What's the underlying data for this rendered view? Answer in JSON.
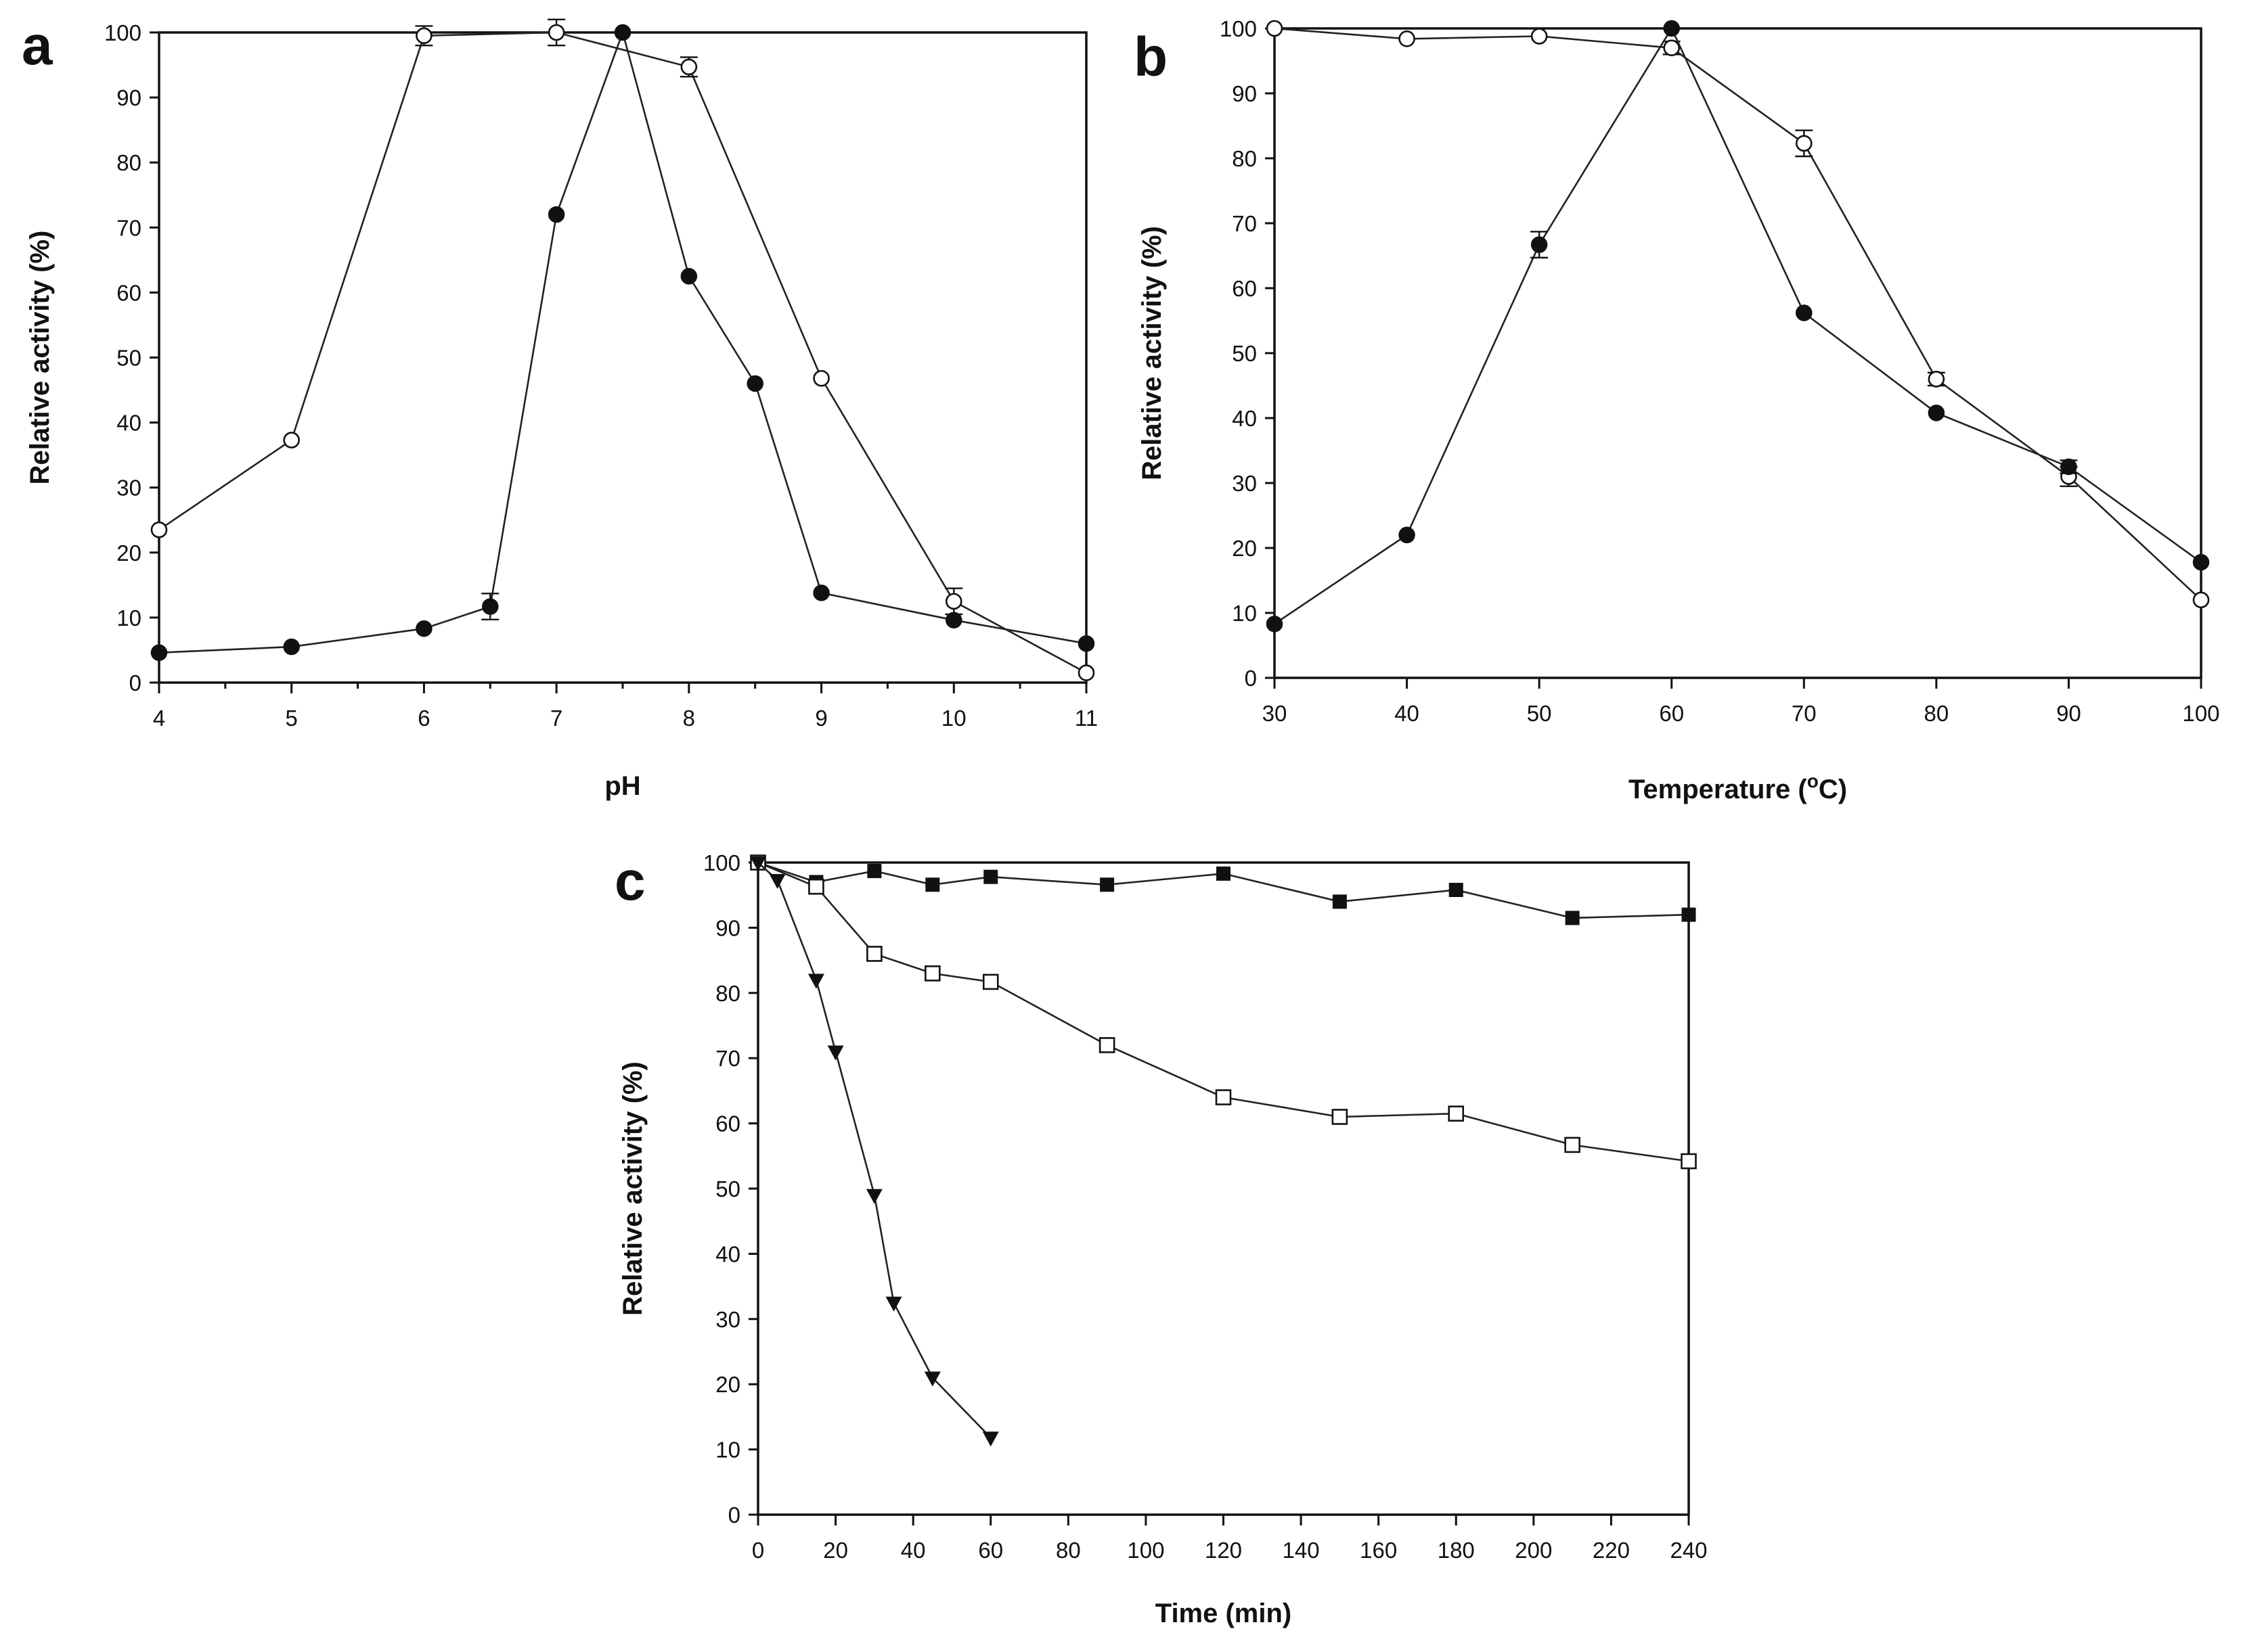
{
  "chart_data": [
    {
      "id": "a",
      "type": "line",
      "panel_label": "a",
      "xlabel": "pH",
      "ylabel": "Relative activity (%)",
      "xlim": [
        4,
        11
      ],
      "ylim": [
        0,
        100
      ],
      "xticks": [
        4,
        5,
        6,
        7,
        8,
        9,
        10,
        11
      ],
      "xticks_labeled": [
        4,
        5,
        6,
        7,
        8,
        9,
        10,
        11
      ],
      "xminor": [
        4.5,
        5.5,
        6.5,
        7.5,
        8.5,
        9.5,
        10.5
      ],
      "yticks": [
        0,
        10,
        20,
        30,
        40,
        50,
        60,
        70,
        80,
        90,
        100
      ],
      "series": [
        {
          "name": "open circles",
          "marker": "circle-open",
          "x": [
            4,
            5,
            6,
            7,
            8,
            9,
            10,
            11
          ],
          "y": [
            23.5,
            37.3,
            99.5,
            100,
            94.7,
            46.8,
            12.5,
            1.5
          ],
          "err": [
            0,
            0,
            1.5,
            2,
            1.5,
            0,
            2,
            0
          ]
        },
        {
          "name": "filled circles",
          "marker": "circle-filled",
          "x": [
            4,
            5,
            6,
            6.5,
            7,
            7.5,
            8,
            8.5,
            9,
            10,
            11
          ],
          "y": [
            4.6,
            5.5,
            8.3,
            11.7,
            72,
            100,
            62.5,
            46,
            13.8,
            9.6,
            6
          ],
          "err": [
            0,
            0,
            0,
            2,
            0,
            0,
            0,
            0,
            0,
            0,
            0
          ]
        }
      ]
    },
    {
      "id": "b",
      "type": "line",
      "panel_label": "b",
      "xlabel": "Temperature (",
      "xlabel_sup": "o",
      "xlabel_tail": "C)",
      "ylabel": "Relative activity (%)",
      "xlim": [
        30,
        100
      ],
      "ylim": [
        0,
        100
      ],
      "xticks": [
        30,
        40,
        50,
        60,
        70,
        80,
        90,
        100
      ],
      "xticks_labeled": [
        30,
        40,
        50,
        60,
        70,
        80,
        90,
        100
      ],
      "xminor": [],
      "yticks": [
        0,
        10,
        20,
        30,
        40,
        50,
        60,
        70,
        80,
        90,
        100
      ],
      "series": [
        {
          "name": "open circles",
          "marker": "circle-open",
          "x": [
            30,
            40,
            50,
            60,
            70,
            80,
            90,
            100
          ],
          "y": [
            100,
            98.4,
            98.8,
            97,
            82.3,
            46,
            31,
            12
          ],
          "err": [
            0,
            0,
            0,
            1,
            2,
            1,
            1.5,
            0
          ]
        },
        {
          "name": "filled circles",
          "marker": "circle-filled",
          "x": [
            30,
            40,
            50,
            60,
            70,
            80,
            90,
            100
          ],
          "y": [
            8.3,
            22,
            66.7,
            100,
            56.2,
            40.8,
            32.5,
            17.8
          ],
          "err": [
            0,
            0,
            2,
            0,
            0,
            0,
            1,
            0
          ]
        }
      ]
    },
    {
      "id": "c",
      "type": "line",
      "panel_label": "c",
      "xlabel": "Time (min)",
      "ylabel": "Relative activity (%)",
      "xlim": [
        0,
        240
      ],
      "ylim": [
        0,
        100
      ],
      "xticks": [
        0,
        20,
        40,
        60,
        80,
        100,
        120,
        140,
        160,
        180,
        200,
        220,
        240
      ],
      "xticks_labeled": [
        0,
        20,
        40,
        60,
        80,
        100,
        120,
        140,
        160,
        180,
        200,
        220,
        240
      ],
      "xminor": [],
      "yticks": [
        0,
        10,
        20,
        30,
        40,
        50,
        60,
        70,
        80,
        90,
        100
      ],
      "series": [
        {
          "name": "filled squares",
          "marker": "square-filled",
          "x": [
            0,
            15,
            30,
            45,
            60,
            90,
            120,
            150,
            180,
            210,
            240
          ],
          "y": [
            100,
            97,
            98.7,
            96.6,
            97.8,
            96.6,
            98.3,
            94,
            95.8,
            91.5,
            92
          ],
          "err": []
        },
        {
          "name": "open squares",
          "marker": "square-open",
          "x": [
            0,
            15,
            30,
            45,
            60,
            90,
            120,
            150,
            180,
            210,
            240
          ],
          "y": [
            100,
            96.3,
            86,
            83,
            81.7,
            72,
            64,
            61,
            61.5,
            56.7,
            54.2
          ],
          "err": []
        },
        {
          "name": "filled triangles",
          "marker": "triangle-down-filled",
          "x": [
            0,
            5,
            15,
            20,
            30,
            35,
            45,
            60
          ],
          "y": [
            100,
            97.3,
            82,
            71,
            49,
            32.5,
            21,
            11.8
          ],
          "err": []
        }
      ]
    }
  ]
}
